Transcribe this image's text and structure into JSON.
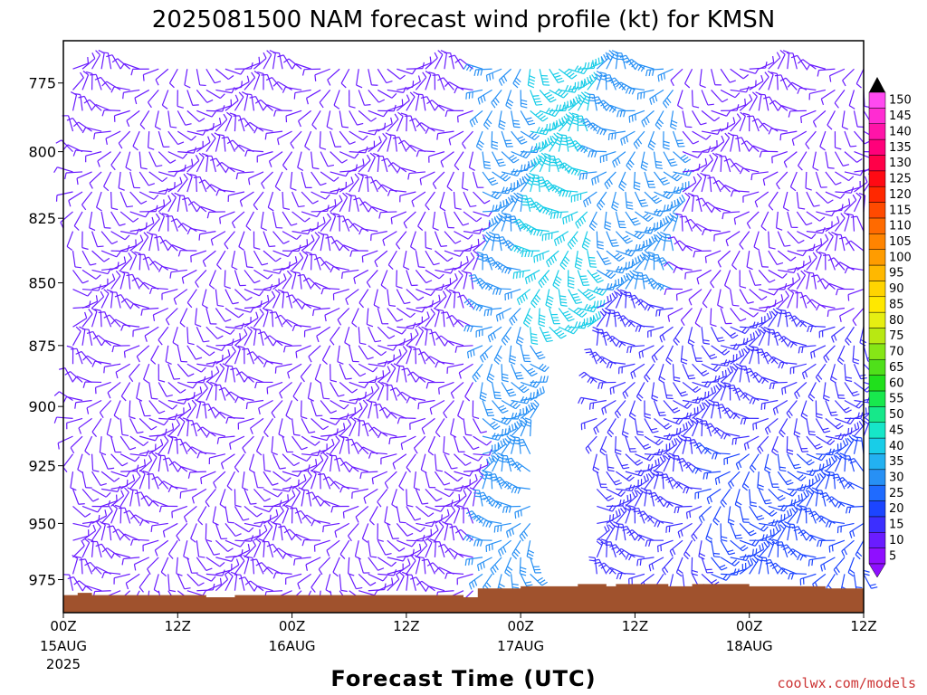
{
  "chart_data": {
    "type": "wind-barb-time-height",
    "title": "2025081500 NAM forecast wind profile (kt) for KMSN",
    "xlabel": "Forecast Time (UTC)",
    "credit": "coolwx.com/models",
    "y_axis": {
      "quantity": "pressure (hPa)",
      "range": [
        990,
        760
      ],
      "inverted": true,
      "ticks": [
        775,
        800,
        825,
        850,
        875,
        900,
        925,
        950,
        975
      ],
      "tick_labels": [
        "775",
        "800",
        "825",
        "850",
        "875",
        "900",
        "925",
        "950",
        "975"
      ]
    },
    "x_axis": {
      "quantity": "forecast hour",
      "range": [
        0,
        84
      ],
      "ticks": [
        {
          "hour": 0,
          "label": "00Z",
          "sub": "15AUG",
          "sub2": "2025"
        },
        {
          "hour": 12,
          "label": "12Z",
          "sub": "",
          "sub2": ""
        },
        {
          "hour": 24,
          "label": "00Z",
          "sub": "16AUG",
          "sub2": ""
        },
        {
          "hour": 36,
          "label": "12Z",
          "sub": "",
          "sub2": ""
        },
        {
          "hour": 48,
          "label": "00Z",
          "sub": "17AUG",
          "sub2": ""
        },
        {
          "hour": 60,
          "label": "12Z",
          "sub": "",
          "sub2": ""
        },
        {
          "hour": 72,
          "label": "00Z",
          "sub": "18AUG",
          "sub2": ""
        },
        {
          "hour": 84,
          "label": "12Z",
          "sub": "",
          "sub2": ""
        }
      ]
    },
    "colorbar": {
      "quantity": "wind speed (kt)",
      "levels": [
        "5",
        "10",
        "15",
        "20",
        "25",
        "30",
        "35",
        "40",
        "45",
        "50",
        "55",
        "60",
        "65",
        "70",
        "75",
        "80",
        "85",
        "90",
        "95",
        "100",
        "105",
        "110",
        "115",
        "120",
        "125",
        "130",
        "135",
        "140",
        "145",
        "150"
      ],
      "colors": [
        "#8f0fff",
        "#6a1cff",
        "#3c2fff",
        "#1c45ff",
        "#1f6bff",
        "#2790f5",
        "#23b1f1",
        "#18cde8",
        "#16e6c8",
        "#16e88a",
        "#18e84d",
        "#20e01c",
        "#4fe01a",
        "#86e616",
        "#b8e812",
        "#e6ee12",
        "#ffe800",
        "#ffd400",
        "#ffb800",
        "#ff9c00",
        "#ff8400",
        "#ff6a00",
        "#ff4a00",
        "#ff2800",
        "#ff0a14",
        "#ff0048",
        "#ff007a",
        "#ff14a8",
        "#ff2cd2",
        "#ff4af0"
      ]
    },
    "grid": false,
    "surface_color": "#a0522d",
    "surface_pressure_hpa": [
      [
        0,
        982
      ],
      [
        1.5,
        981
      ],
      [
        3,
        982
      ],
      [
        15,
        983
      ],
      [
        18,
        982
      ],
      [
        22,
        982
      ],
      [
        40,
        982
      ],
      [
        42,
        983
      ],
      [
        43,
        983
      ],
      [
        43.5,
        979
      ],
      [
        46,
        979
      ],
      [
        48,
        978
      ],
      [
        52,
        978
      ],
      [
        54,
        977
      ],
      [
        56,
        977
      ],
      [
        57,
        978
      ],
      [
        58,
        977
      ],
      [
        63,
        977
      ],
      [
        63.5,
        978
      ],
      [
        66,
        977
      ],
      [
        70,
        977
      ],
      [
        72,
        978
      ],
      [
        78,
        978
      ],
      [
        80,
        979
      ],
      [
        82,
        979
      ],
      [
        84,
        980
      ]
    ],
    "wind_regions": [
      {
        "hours": [
          0,
          43
        ],
        "p_top": 760,
        "p_bottom": 985,
        "speed_kt": 10
      },
      {
        "hours": [
          43.5,
          49
        ],
        "p_top": 760,
        "p_bottom": 985,
        "speed_kt": 28
      },
      {
        "hours": [
          49,
          56
        ],
        "p_top": 760,
        "p_bottom": 870,
        "speed_kt": 40
      },
      {
        "hours": [
          56,
          65
        ],
        "p_top": 760,
        "p_bottom": 860,
        "speed_kt": 30
      },
      {
        "hours": [
          56,
          84
        ],
        "p_top": 860,
        "p_bottom": 985,
        "speed_kt": 15
      },
      {
        "hours": [
          65,
          84
        ],
        "p_top": 760,
        "p_bottom": 860,
        "speed_kt": 12
      },
      {
        "hours": [
          68,
          84
        ],
        "p_top": 920,
        "p_bottom": 980,
        "speed_kt": 22
      }
    ]
  }
}
